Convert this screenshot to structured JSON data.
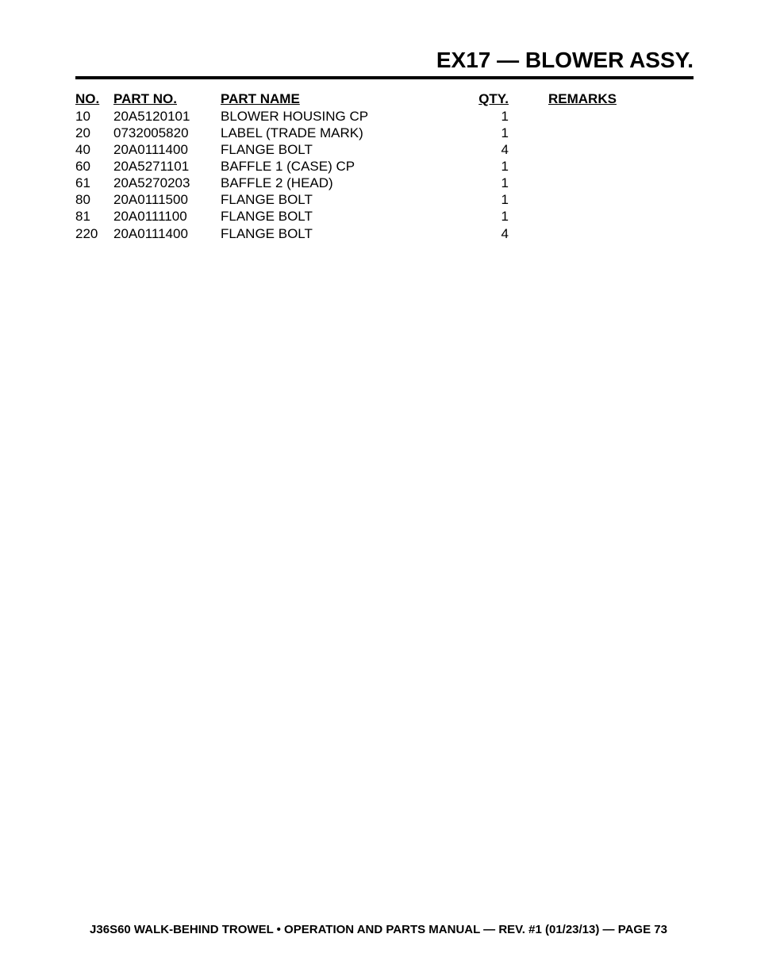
{
  "title": "EX17 — BLOWER ASSY.",
  "table": {
    "columns": {
      "no": "NO.",
      "partno": "PART NO.",
      "partname": "PART NAME",
      "qty": "QTY.",
      "remarks": "REMARKS"
    },
    "header_fontsize": 17,
    "row_fontsize": 17,
    "text_color": "#000000",
    "rows": [
      {
        "no": "10",
        "partno": "20A5120101",
        "partname": "BLOWER HOUSING CP",
        "qty": "1",
        "remarks": ""
      },
      {
        "no": "20",
        "partno": "0732005820",
        "partname": "LABEL (TRADE MARK)",
        "qty": "1",
        "remarks": ""
      },
      {
        "no": "40",
        "partno": "20A0111400",
        "partname": "FLANGE BOLT",
        "qty": "4",
        "remarks": ""
      },
      {
        "no": "60",
        "partno": "20A5271101",
        "partname": "BAFFLE 1 (CASE) CP",
        "qty": "1",
        "remarks": ""
      },
      {
        "no": "61",
        "partno": "20A5270203",
        "partname": "BAFFLE 2 (HEAD)",
        "qty": "1",
        "remarks": ""
      },
      {
        "no": "80",
        "partno": "20A0111500",
        "partname": "FLANGE BOLT",
        "qty": "1",
        "remarks": ""
      },
      {
        "no": "81",
        "partno": "20A0111100",
        "partname": "FLANGE BOLT",
        "qty": "1",
        "remarks": ""
      },
      {
        "no": "220",
        "partno": "20A0111400",
        "partname": "FLANGE BOLT",
        "qty": "4",
        "remarks": ""
      }
    ]
  },
  "footer": "J36S60 WALK-BEHIND TROWEL • OPERATION AND PARTS MANUAL — REV. #1 (01/23/13) — PAGE 73",
  "colors": {
    "background": "#ffffff",
    "text": "#000000",
    "underline": "#000000"
  },
  "title_fontsize": 28,
  "footer_fontsize": 15
}
